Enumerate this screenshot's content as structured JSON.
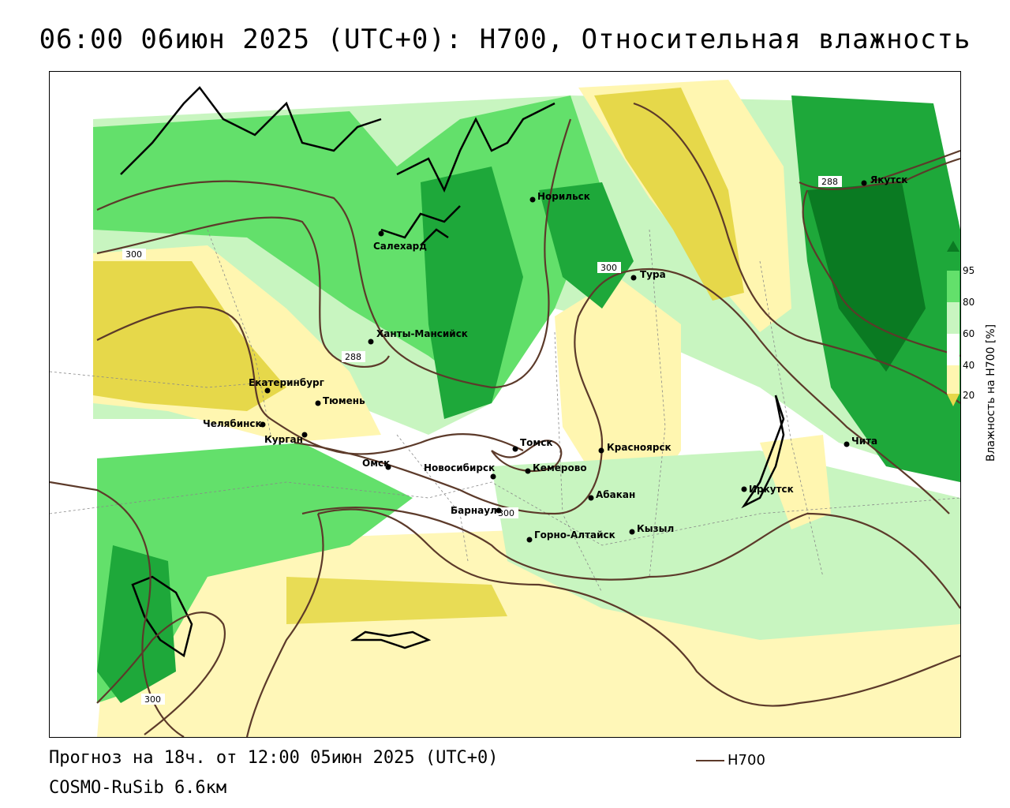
{
  "title": "06:00 06июн 2025 (UTC+0): H700, Относительная влажность",
  "forecast_text": "Прогноз на 18ч. от 12:00 05июн 2025 (UTC+0)",
  "model_text": "COSMO-RuSib 6.6км",
  "contour_key": {
    "label": "H700",
    "color": "#5c3a2a"
  },
  "legend": {
    "title": "Влажность на H700 [%]",
    "ticks": [
      "95",
      "80",
      "60",
      "40",
      "20"
    ],
    "colors": {
      "very_dry": "#e6d84a",
      "dry": "#fff6b0",
      "neutral": "#ffffff",
      "moist_light": "#c8f5c0",
      "moist": "#63e06b",
      "wet": "#1ea83a",
      "very_wet": "#0a7a22"
    }
  },
  "contour_labels": [
    "300",
    "288",
    "300",
    "288",
    "300",
    "300"
  ],
  "cities": [
    {
      "name": "Салехард"
    },
    {
      "name": "Норильск"
    },
    {
      "name": "Якутск"
    },
    {
      "name": "Тура"
    },
    {
      "name": "Ханты-Мансийск"
    },
    {
      "name": "Екатеринбург"
    },
    {
      "name": "Тюмень"
    },
    {
      "name": "Челябинск"
    },
    {
      "name": "Курган"
    },
    {
      "name": "Омск"
    },
    {
      "name": "Новосибирск"
    },
    {
      "name": "Томск"
    },
    {
      "name": "Кемерово"
    },
    {
      "name": "Красноярск"
    },
    {
      "name": "Барнаул"
    },
    {
      "name": "Абакан"
    },
    {
      "name": "Горно-Алтайск"
    },
    {
      "name": "Кызыл"
    },
    {
      "name": "Иркутск"
    },
    {
      "name": "Чита"
    }
  ]
}
